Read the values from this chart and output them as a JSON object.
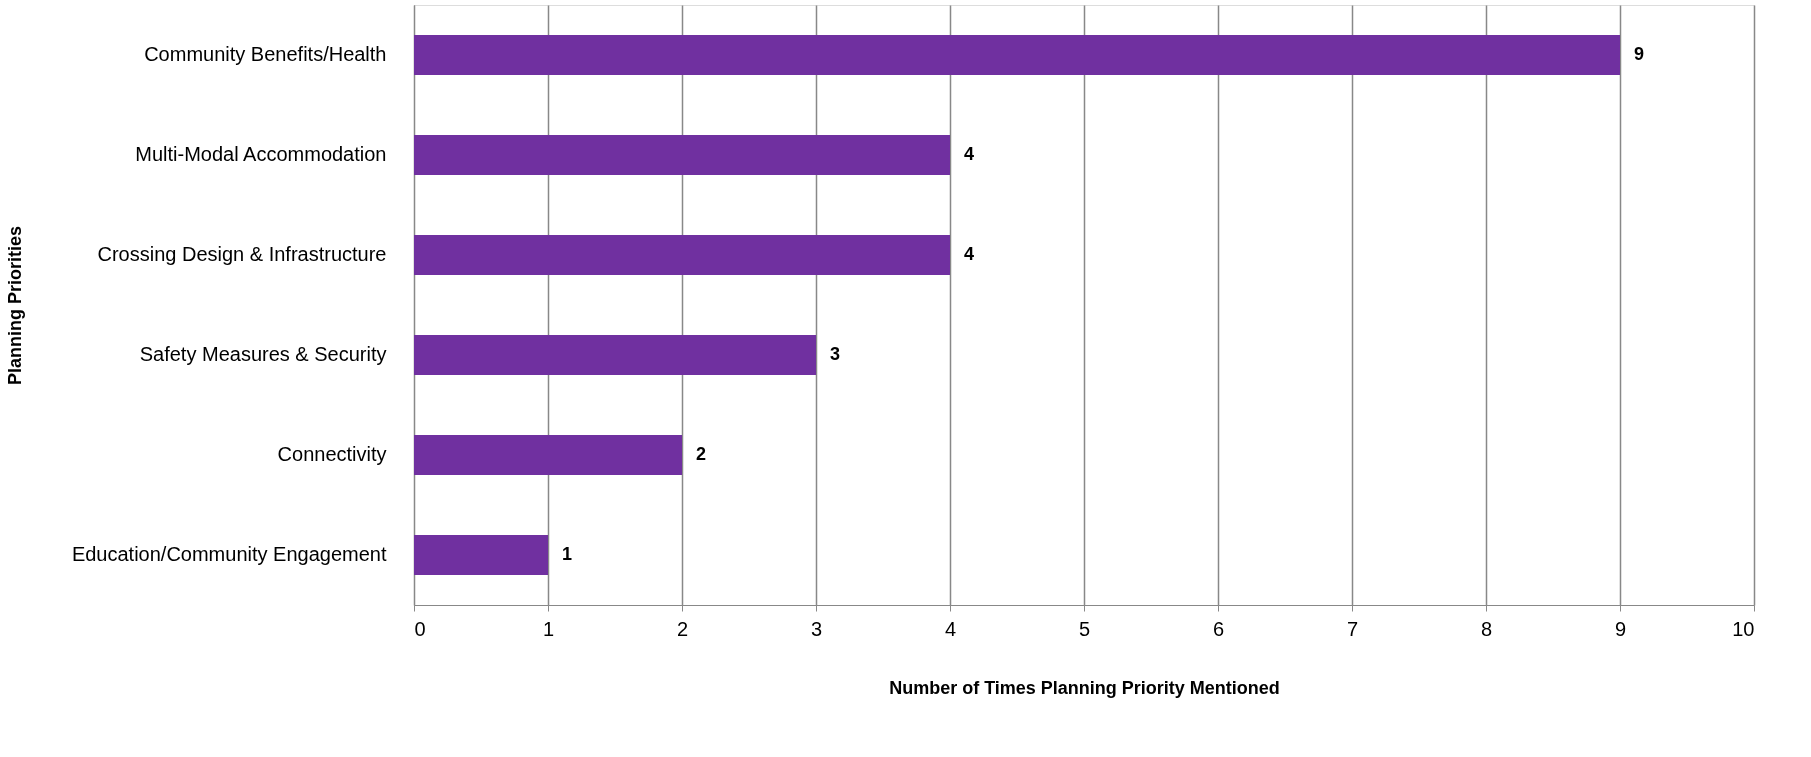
{
  "chart_data": {
    "type": "bar",
    "orientation": "horizontal",
    "xlabel": "Number of Times Planning Priority Mentioned",
    "ylabel": "Planning Priorities",
    "categories": [
      "Community Benefits/Health",
      "Multi-Modal Accommodation",
      "Crossing Design & Infrastructure",
      "Safety Measures & Security",
      "Connectivity",
      "Education/Community Engagement"
    ],
    "values": [
      9,
      4,
      4,
      3,
      2,
      1
    ],
    "color": "#7030a0",
    "xlim": [
      0,
      10
    ],
    "xticks": [
      0,
      1,
      2,
      3,
      4,
      5,
      6,
      7,
      8,
      9,
      10
    ],
    "grid": "x",
    "data_labels": true
  }
}
